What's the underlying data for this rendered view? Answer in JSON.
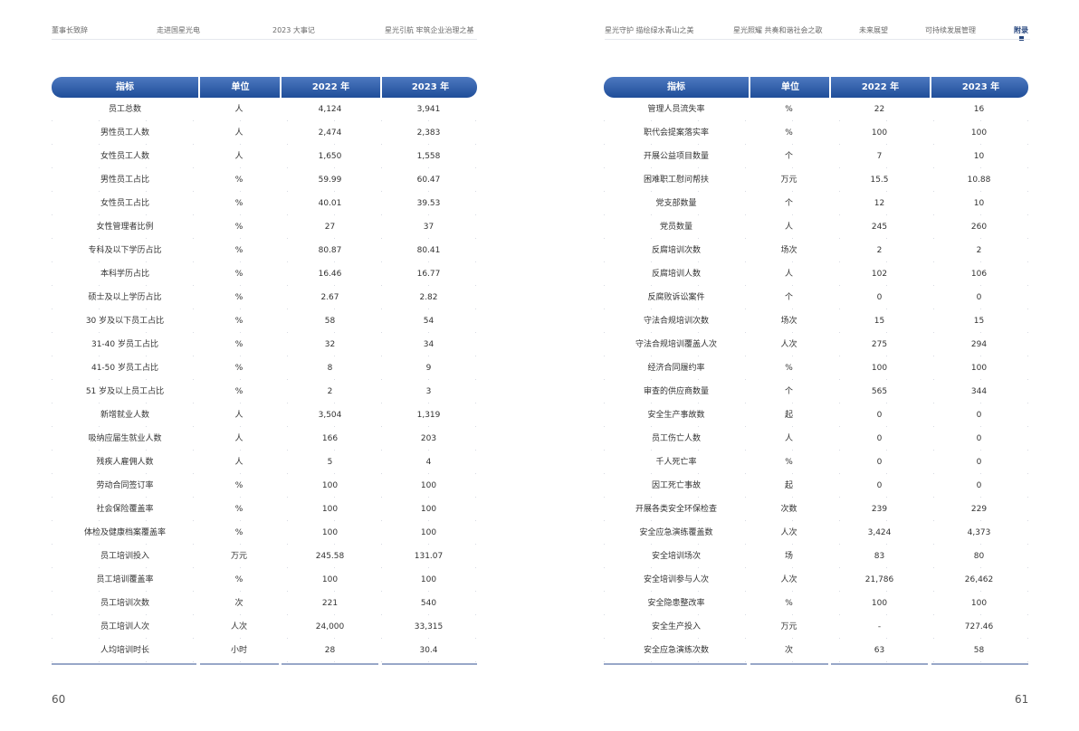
{
  "nav": {
    "items": [
      "董事长致辞",
      "走进国星光电",
      "2023 大事记",
      "星光引航 牢筑企业治理之基",
      "星光守护 描绘绿水青山之美",
      "星光照耀 共奏和谐社会之歌",
      "未来展望",
      "可持续发展管理",
      "附录"
    ],
    "active": "附录"
  },
  "left_table": {
    "headers": [
      "指标",
      "单位",
      "2022 年",
      "2023 年"
    ],
    "rows": [
      [
        "员工总数",
        "人",
        "4,124",
        "3,941"
      ],
      [
        "男性员工人数",
        "人",
        "2,474",
        "2,383"
      ],
      [
        "女性员工人数",
        "人",
        "1,650",
        "1,558"
      ],
      [
        "男性员工占比",
        "%",
        "59.99",
        "60.47"
      ],
      [
        "女性员工占比",
        "%",
        "40.01",
        "39.53"
      ],
      [
        "女性管理者比例",
        "%",
        "27",
        "37"
      ],
      [
        "专科及以下学历占比",
        "%",
        "80.87",
        "80.41"
      ],
      [
        "本科学历占比",
        "%",
        "16.46",
        "16.77"
      ],
      [
        "硕士及以上学历占比",
        "%",
        "2.67",
        "2.82"
      ],
      [
        "30 岁及以下员工占比",
        "%",
        "58",
        "54"
      ],
      [
        "31-40 岁员工占比",
        "%",
        "32",
        "34"
      ],
      [
        "41-50 岁员工占比",
        "%",
        "8",
        "9"
      ],
      [
        "51 岁及以上员工占比",
        "%",
        "2",
        "3"
      ],
      [
        "新增就业人数",
        "人",
        "3,504",
        "1,319"
      ],
      [
        "吸纳应届生就业人数",
        "人",
        "166",
        "203"
      ],
      [
        "残疾人雇佣人数",
        "人",
        "5",
        "4"
      ],
      [
        "劳动合同签订率",
        "%",
        "100",
        "100"
      ],
      [
        "社会保险覆盖率",
        "%",
        "100",
        "100"
      ],
      [
        "体检及健康档案覆盖率",
        "%",
        "100",
        "100"
      ],
      [
        "员工培训投入",
        "万元",
        "245.58",
        "131.07"
      ],
      [
        "员工培训覆盖率",
        "%",
        "100",
        "100"
      ],
      [
        "员工培训次数",
        "次",
        "221",
        "540"
      ],
      [
        "员工培训人次",
        "人次",
        "24,000",
        "33,315"
      ],
      [
        "人均培训时长",
        "小时",
        "28",
        "30.4"
      ]
    ]
  },
  "right_table": {
    "headers": [
      "指标",
      "单位",
      "2022 年",
      "2023 年"
    ],
    "rows": [
      [
        "管理人员流失率",
        "%",
        "22",
        "16"
      ],
      [
        "职代会提案落实率",
        "%",
        "100",
        "100"
      ],
      [
        "开展公益项目数量",
        "个",
        "7",
        "10"
      ],
      [
        "困难职工慰问帮扶",
        "万元",
        "15.5",
        "10.88"
      ],
      [
        "党支部数量",
        "个",
        "12",
        "10"
      ],
      [
        "党员数量",
        "人",
        "245",
        "260"
      ],
      [
        "反腐培训次数",
        "场次",
        "2",
        "2"
      ],
      [
        "反腐培训人数",
        "人",
        "102",
        "106"
      ],
      [
        "反腐败诉讼案件",
        "个",
        "0",
        "0"
      ],
      [
        "守法合规培训次数",
        "场次",
        "15",
        "15"
      ],
      [
        "守法合规培训覆盖人次",
        "人次",
        "275",
        "294"
      ],
      [
        "经济合同履约率",
        "%",
        "100",
        "100"
      ],
      [
        "审查的供应商数量",
        "个",
        "565",
        "344"
      ],
      [
        "安全生产事故数",
        "起",
        "0",
        "0"
      ],
      [
        "员工伤亡人数",
        "人",
        "0",
        "0"
      ],
      [
        "千人死亡率",
        "%",
        "0",
        "0"
      ],
      [
        "因工死亡事故",
        "起",
        "0",
        "0"
      ],
      [
        "开展各类安全环保检查",
        "次数",
        "239",
        "229"
      ],
      [
        "安全应急演练覆盖数",
        "人次",
        "3,424",
        "4,373"
      ],
      [
        "安全培训场次",
        "场",
        "83",
        "80"
      ],
      [
        "安全培训参与人次",
        "人次",
        "21,786",
        "26,462"
      ],
      [
        "安全隐患整改率",
        "%",
        "100",
        "100"
      ],
      [
        "安全生产投入",
        "万元",
        "-",
        "727.46"
      ],
      [
        "安全应急演练次数",
        "次",
        "63",
        "58"
      ]
    ]
  },
  "page_numbers": {
    "left": "60",
    "right": "61"
  }
}
